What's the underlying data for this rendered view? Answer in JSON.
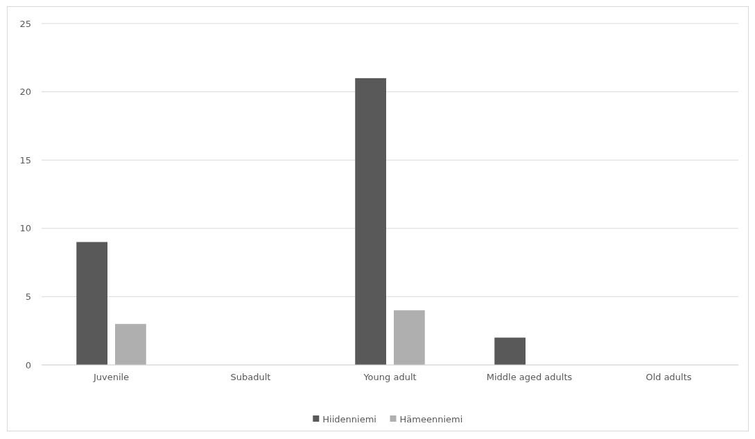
{
  "chart_data": {
    "type": "bar",
    "categories": [
      "Juvenile",
      "Subadult",
      "Young adult",
      "Middle aged adults",
      "Old adults"
    ],
    "series": [
      {
        "name": "Hiidenniemi",
        "color": "#595959",
        "values": [
          9,
          0,
          21,
          2,
          0
        ]
      },
      {
        "name": "Hämeenniemi",
        "color": "#afafaf",
        "values": [
          3,
          0,
          4,
          0,
          0
        ]
      }
    ],
    "ylim": [
      0,
      25
    ],
    "yticks": [
      0,
      5,
      10,
      15,
      20,
      25
    ],
    "grid": "y",
    "legend": "bottom"
  }
}
